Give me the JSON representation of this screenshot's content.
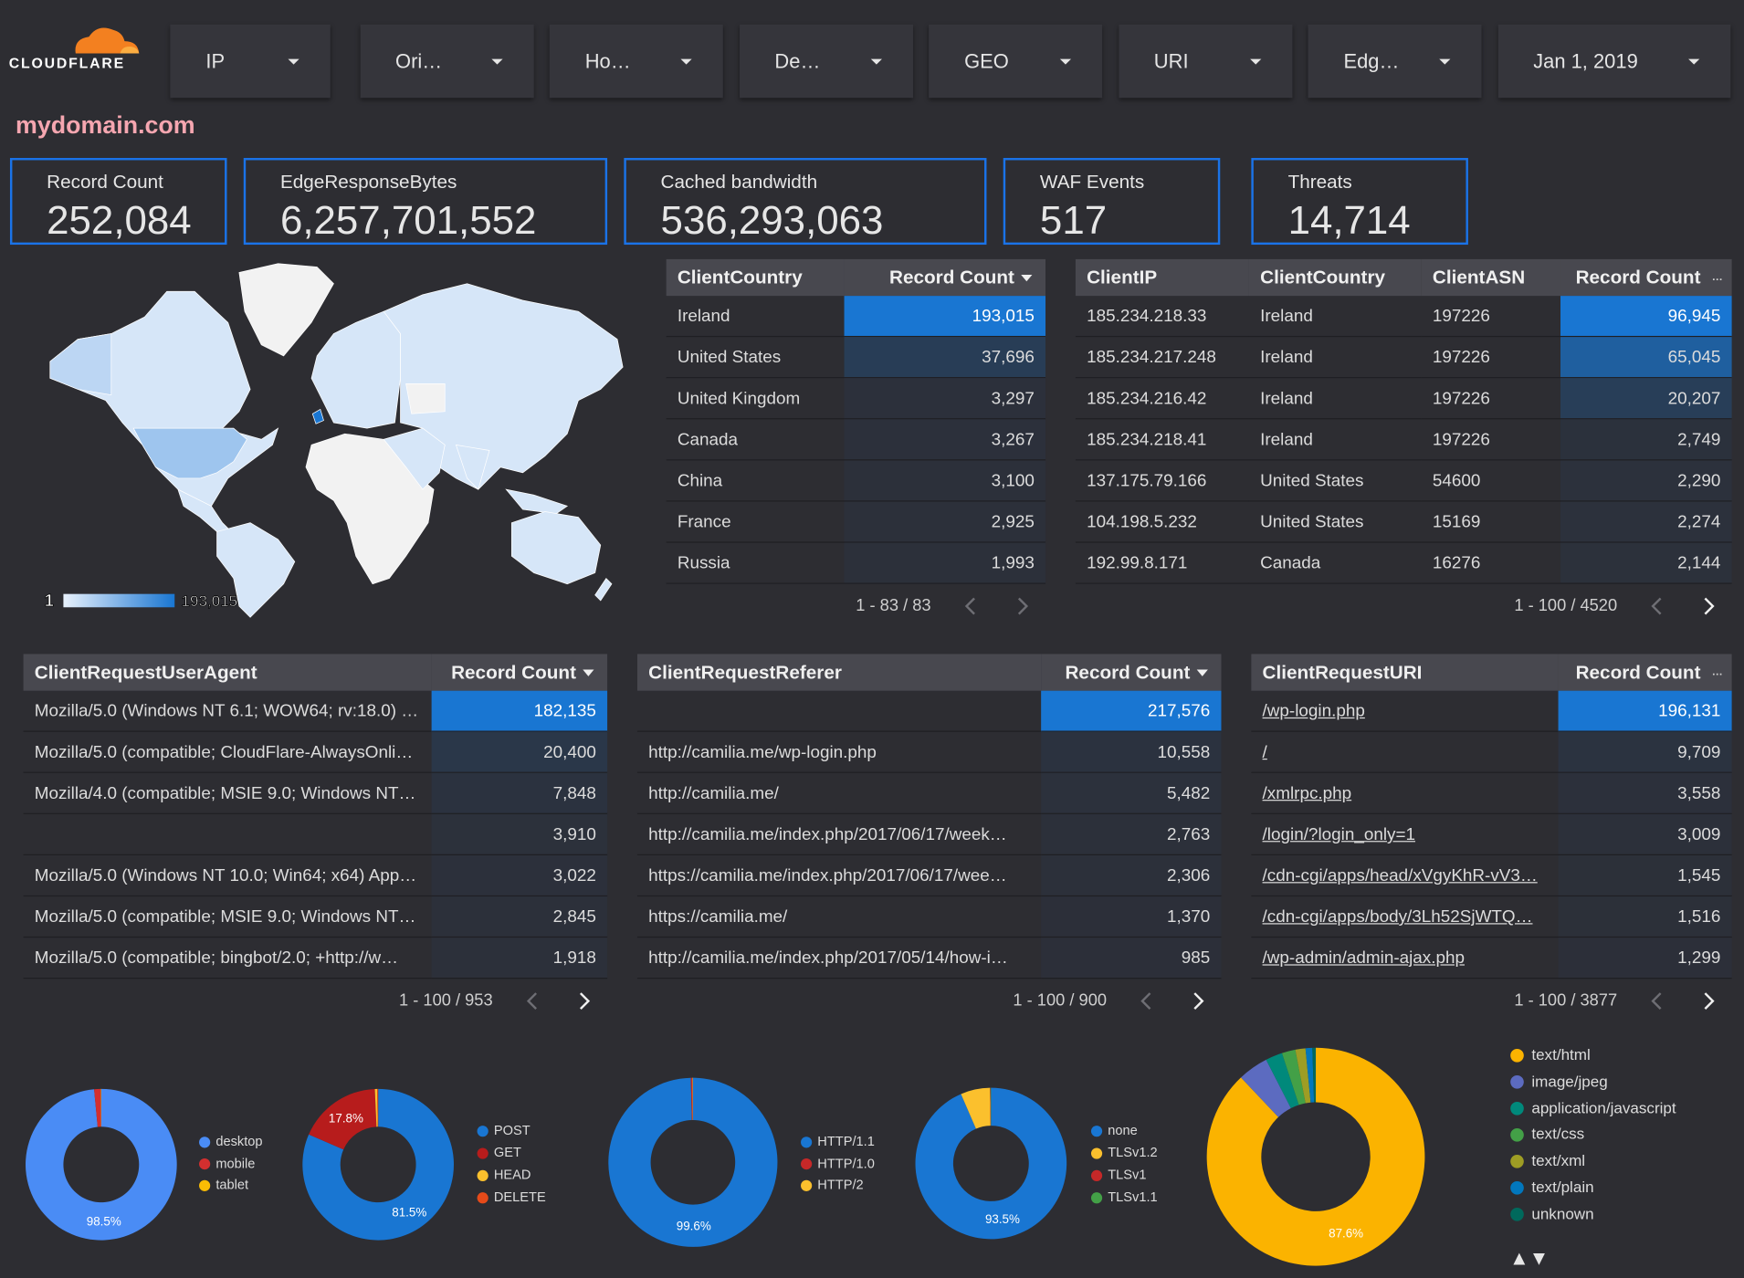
{
  "header": {
    "logo": "CLOUDFLARE",
    "filters": [
      "IP",
      "Ori…",
      "Ho…",
      "De…",
      "GEO",
      "URI",
      "Edg…",
      "Jan 1, 2019"
    ],
    "domain": "mydomain.com"
  },
  "scorecards": [
    {
      "label": "Record Count",
      "value": "252,084"
    },
    {
      "label": "EdgeResponseBytes",
      "value": "6,257,701,552"
    },
    {
      "label": "Cached bandwidth",
      "value": "536,293,063"
    },
    {
      "label": "WAF Events",
      "value": "517"
    },
    {
      "label": "Threats",
      "value": "14,714"
    }
  ],
  "map": {
    "legend_min": "1",
    "legend_max": "193,015"
  },
  "tables": [
    {
      "columns": [
        "ClientCountry",
        "Record Count"
      ],
      "rows": [
        [
          "Ireland",
          "193,015"
        ],
        [
          "United States",
          "37,696"
        ],
        [
          "United Kingdom",
          "3,297"
        ],
        [
          "Canada",
          "3,267"
        ],
        [
          "China",
          "3,100"
        ],
        [
          "France",
          "2,925"
        ],
        [
          "Russia",
          "1,993"
        ]
      ],
      "pagination": "1 - 83 / 83"
    },
    {
      "columns": [
        "ClientIP",
        "ClientCountry",
        "ClientASN",
        "Record Count"
      ],
      "rows": [
        [
          "185.234.218.33",
          "Ireland",
          "197226",
          "96,945"
        ],
        [
          "185.234.217.248",
          "Ireland",
          "197226",
          "65,045"
        ],
        [
          "185.234.216.42",
          "Ireland",
          "197226",
          "20,207"
        ],
        [
          "185.234.218.41",
          "Ireland",
          "197226",
          "2,749"
        ],
        [
          "137.175.79.166",
          "United States",
          "54600",
          "2,290"
        ],
        [
          "104.198.5.232",
          "United States",
          "15169",
          "2,274"
        ],
        [
          "192.99.8.171",
          "Canada",
          "16276",
          "2,144"
        ]
      ],
      "pagination": "1 - 100 / 4520"
    },
    {
      "columns": [
        "ClientRequestUserAgent",
        "Record Count"
      ],
      "rows": [
        [
          "Mozilla/5.0 (Windows NT 6.1; WOW64; rv:18.0) …",
          "182,135"
        ],
        [
          "Mozilla/5.0 (compatible; CloudFlare-AlwaysOnli…",
          "20,400"
        ],
        [
          "Mozilla/4.0 (compatible; MSIE 9.0; Windows NT…",
          "7,848"
        ],
        [
          null,
          "3,910"
        ],
        [
          "Mozilla/5.0 (Windows NT 10.0; Win64; x64) App…",
          "3,022"
        ],
        [
          "Mozilla/5.0 (compatible; MSIE 9.0; Windows NT…",
          "2,845"
        ],
        [
          "Mozilla/5.0 (compatible; bingbot/2.0; +http://w…",
          "1,918"
        ]
      ],
      "pagination": "1 - 100 / 953"
    },
    {
      "columns": [
        "ClientRequestReferer",
        "Record Count"
      ],
      "rows": [
        [
          null,
          "217,576"
        ],
        [
          "http://camilia.me/wp-login.php",
          "10,558"
        ],
        [
          "http://camilia.me/",
          "5,482"
        ],
        [
          "http://camilia.me/index.php/2017/06/17/week…",
          "2,763"
        ],
        [
          "https://camilia.me/index.php/2017/06/17/wee…",
          "2,306"
        ],
        [
          "https://camilia.me/",
          "1,370"
        ],
        [
          "http://camilia.me/index.php/2017/05/14/how-i…",
          "985"
        ]
      ],
      "pagination": "1 - 100 / 900"
    },
    {
      "columns": [
        "ClientRequestURI",
        "Record Count"
      ],
      "rows": [
        [
          "/wp-login.php",
          "196,131"
        ],
        [
          "/",
          "9,709"
        ],
        [
          "/xmlrpc.php",
          "3,558"
        ],
        [
          "/login/?login_only=1",
          "3,009"
        ],
        [
          "/cdn-cgi/apps/head/xVgyKhR-vV3…",
          "1,545"
        ],
        [
          "/cdn-cgi/apps/body/3Lh52SjWTQ…",
          "1,516"
        ],
        [
          "/wp-admin/admin-ajax.php",
          "1,299"
        ]
      ],
      "pagination": "1 - 100 / 3877"
    }
  ],
  "donuts": [
    {
      "slices": [
        {
          "name": "desktop",
          "color": "#4a8cf5",
          "value": 98.5,
          "label": "98.5%"
        },
        {
          "name": "mobile",
          "color": "#d32f2f",
          "value": 1.4
        },
        {
          "name": "tablet",
          "color": "#fbbc04",
          "value": 0.1
        }
      ]
    },
    {
      "slices": [
        {
          "name": "POST",
          "color": "#1976d2",
          "value": 81.5,
          "label": "81.5%"
        },
        {
          "name": "GET",
          "color": "#b71c1c",
          "value": 17.8,
          "label": "17.8%"
        },
        {
          "name": "HEAD",
          "color": "#fbc02d",
          "value": 0.5
        },
        {
          "name": "DELETE",
          "color": "#e64a19",
          "value": 0.2
        }
      ]
    },
    {
      "slices": [
        {
          "name": "HTTP/1.1",
          "color": "#1976d2",
          "value": 99.6,
          "label": "99.6%"
        },
        {
          "name": "HTTP/1.0",
          "color": "#c62828",
          "value": 0.3
        },
        {
          "name": "HTTP/2",
          "color": "#fbc02d",
          "value": 0.1
        }
      ]
    },
    {
      "slices": [
        {
          "name": "none",
          "color": "#1976d2",
          "value": 93.5,
          "label": "93.5%"
        },
        {
          "name": "TLSv1.2",
          "color": "#fbc02d",
          "value": 6.3
        },
        {
          "name": "TLSv1",
          "color": "#c62828",
          "value": 0.1
        },
        {
          "name": "TLSv1.1",
          "color": "#43a047",
          "value": 0.1
        }
      ]
    },
    {
      "slices": [
        {
          "name": "text/html",
          "color": "#fbb300",
          "value": 87.6,
          "label": "87.6%"
        },
        {
          "name": "image/jpeg",
          "color": "#5c6bc0",
          "value": 4.5
        },
        {
          "name": "application/javascript",
          "color": "#00897b",
          "value": 2.5
        },
        {
          "name": "text/css",
          "color": "#43a047",
          "value": 2
        },
        {
          "name": "text/xml",
          "color": "#9e9d24",
          "value": 1.5
        },
        {
          "name": "text/plain",
          "color": "#0277bd",
          "value": 1
        },
        {
          "name": "unknown",
          "color": "#00695c",
          "value": 0.5
        }
      ]
    }
  ]
}
